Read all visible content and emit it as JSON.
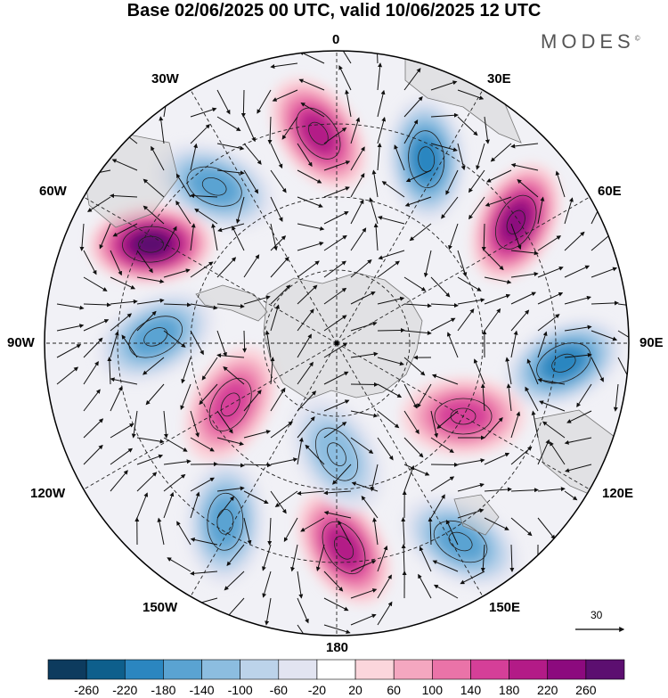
{
  "title": "Base 02/06/2025 00 UTC, valid 10/06/2025 12 UTC",
  "brand": "MODES",
  "brand_mark": "©",
  "longitude_labels": {
    "lon_0": "0",
    "lon_30e": "30E",
    "lon_60e": "60E",
    "lon_90e": "90E",
    "lon_120e": "120E",
    "lon_150e": "150E",
    "lon_180": "180",
    "lon_150w": "150W",
    "lon_120w": "120W",
    "lon_90w": "90W",
    "lon_60w": "60W",
    "lon_30w": "30W"
  },
  "vector_reference": {
    "value": "30"
  },
  "colorbar": {
    "colors": [
      "#0d3b5e",
      "#0e5f8c",
      "#2b86c0",
      "#5aa3d2",
      "#8cbde0",
      "#bcd3ea",
      "#e2e4f1",
      "#ffffff",
      "#fbd6dc",
      "#f4a7c0",
      "#ea73a8",
      "#d53f98",
      "#b31b87",
      "#8c0a7e",
      "#5c0f70"
    ],
    "labels": [
      "-260",
      "-220",
      "-180",
      "-140",
      "-100",
      "-60",
      "-20",
      "20",
      "60",
      "100",
      "140",
      "180",
      "220",
      "260"
    ]
  },
  "colors": {
    "land": "#cfcfcf",
    "coast": "#777777",
    "grid": "#222222"
  },
  "map_data": {
    "projection": "polar-stereographic-south",
    "contour_levels": [
      -260,
      -220,
      -180,
      -140,
      -100,
      -60,
      -20,
      20,
      60,
      100,
      140,
      180,
      220,
      260
    ],
    "anomalies": [
      {
        "lon": -5,
        "lat_ring": 0.72,
        "value": 180
      },
      {
        "lon": 26,
        "lat_ring": 0.7,
        "value": -200
      },
      {
        "lon": 56,
        "lat_ring": 0.74,
        "value": 220
      },
      {
        "lon": 95,
        "lat_ring": 0.78,
        "value": -200
      },
      {
        "lon": 120,
        "lat_ring": 0.5,
        "value": 140
      },
      {
        "lon": -38,
        "lat_ring": 0.68,
        "value": -160
      },
      {
        "lon": -62,
        "lat_ring": 0.72,
        "value": 260
      },
      {
        "lon": -88,
        "lat_ring": 0.62,
        "value": -170
      },
      {
        "lon": -120,
        "lat_ring": 0.42,
        "value": 150
      },
      {
        "lon": -148,
        "lat_ring": 0.72,
        "value": -160
      },
      {
        "lon": 178,
        "lat_ring": 0.7,
        "value": 200
      },
      {
        "lon": 148,
        "lat_ring": 0.8,
        "value": -160
      },
      {
        "lon": 180,
        "lat_ring": 0.38,
        "value": -120
      }
    ]
  }
}
